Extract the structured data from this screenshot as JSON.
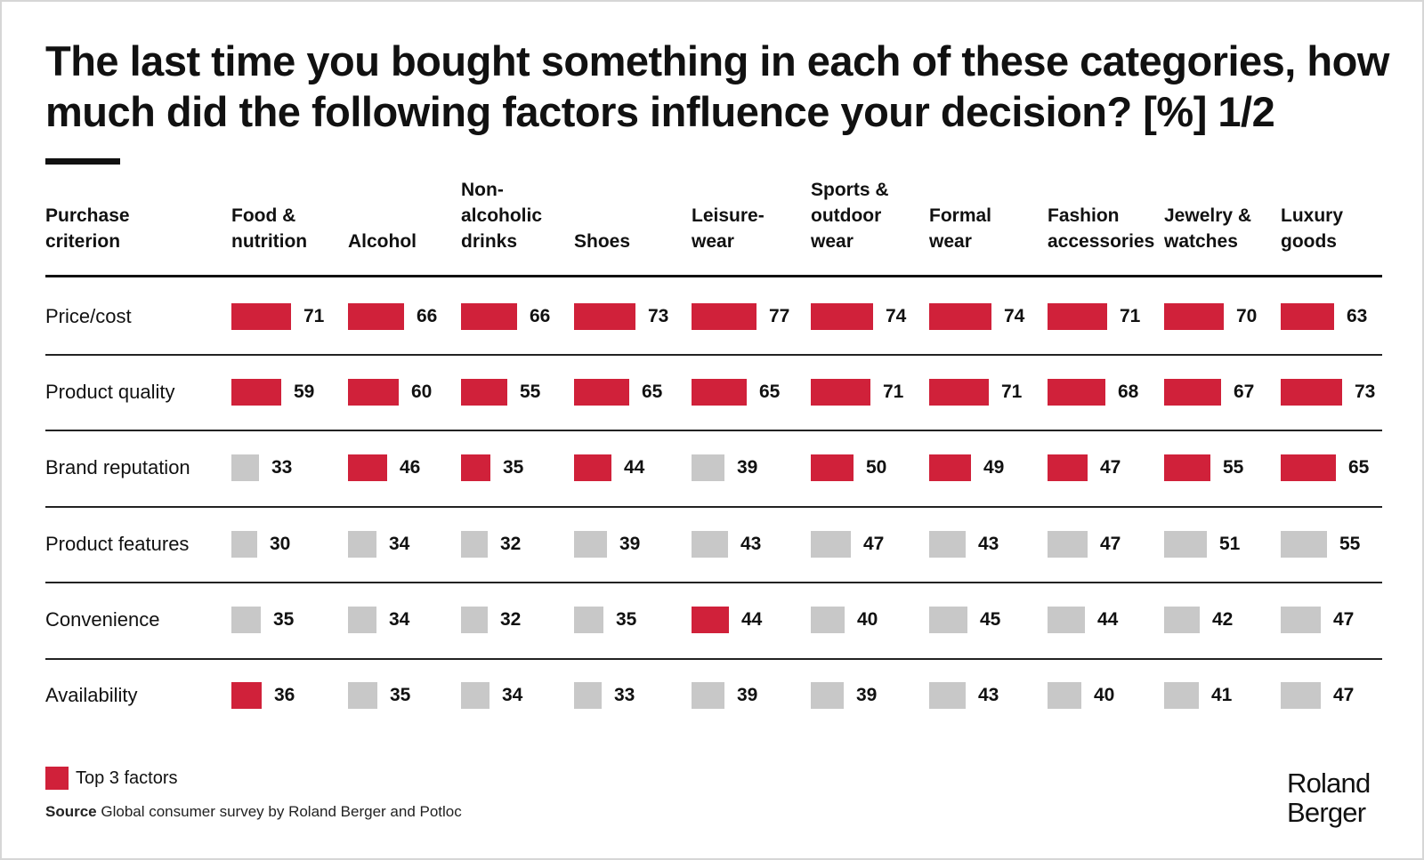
{
  "title": "The last time you bought something in each of these categories, how much did the following factors influence your decision? [%] 1/2",
  "colors": {
    "top3": "#d0213a",
    "other": "#c8c8c8"
  },
  "legend": {
    "top3_label": "Top 3 factors"
  },
  "source": {
    "label": "Source",
    "text": " Global consumer survey by Roland Berger and Potloc"
  },
  "logo": {
    "text": "Roland\nBerger"
  },
  "chart_data": {
    "type": "table",
    "row_header": "Purchase\ncriterion",
    "categories": [
      "Food &\nnutrition",
      "Alcohol",
      "Non-\nalcoholic\ndrinks",
      "Shoes",
      "Leisure-\nwear",
      "Sports &\noutdoor\nwear",
      "Formal\nwear",
      "Fashion\naccessories",
      "Jewelry &\nwatches",
      "Luxury\ngoods"
    ],
    "value_unit": "%",
    "series": [
      {
        "name": "Price/cost",
        "values": [
          71,
          66,
          66,
          73,
          77,
          74,
          74,
          71,
          70,
          63
        ],
        "top3": [
          true,
          true,
          true,
          true,
          true,
          true,
          true,
          true,
          true,
          true
        ]
      },
      {
        "name": "Product quality",
        "values": [
          59,
          60,
          55,
          65,
          65,
          71,
          71,
          68,
          67,
          73
        ],
        "top3": [
          true,
          true,
          true,
          true,
          true,
          true,
          true,
          true,
          true,
          true
        ]
      },
      {
        "name": "Brand reputation",
        "values": [
          33,
          46,
          35,
          44,
          39,
          50,
          49,
          47,
          55,
          65
        ],
        "top3": [
          false,
          true,
          true,
          true,
          false,
          true,
          true,
          true,
          true,
          true
        ]
      },
      {
        "name": "Product features",
        "values": [
          30,
          34,
          32,
          39,
          43,
          47,
          43,
          47,
          51,
          55
        ],
        "top3": [
          false,
          false,
          false,
          false,
          false,
          false,
          false,
          false,
          false,
          false
        ]
      },
      {
        "name": "Convenience",
        "values": [
          35,
          34,
          32,
          35,
          44,
          40,
          45,
          44,
          42,
          47
        ],
        "top3": [
          false,
          false,
          false,
          false,
          true,
          false,
          false,
          false,
          false,
          false
        ]
      },
      {
        "name": "Availability",
        "values": [
          36,
          35,
          34,
          33,
          39,
          39,
          43,
          40,
          41,
          47
        ],
        "top3": [
          true,
          false,
          false,
          false,
          false,
          false,
          false,
          false,
          false,
          false
        ]
      }
    ]
  }
}
